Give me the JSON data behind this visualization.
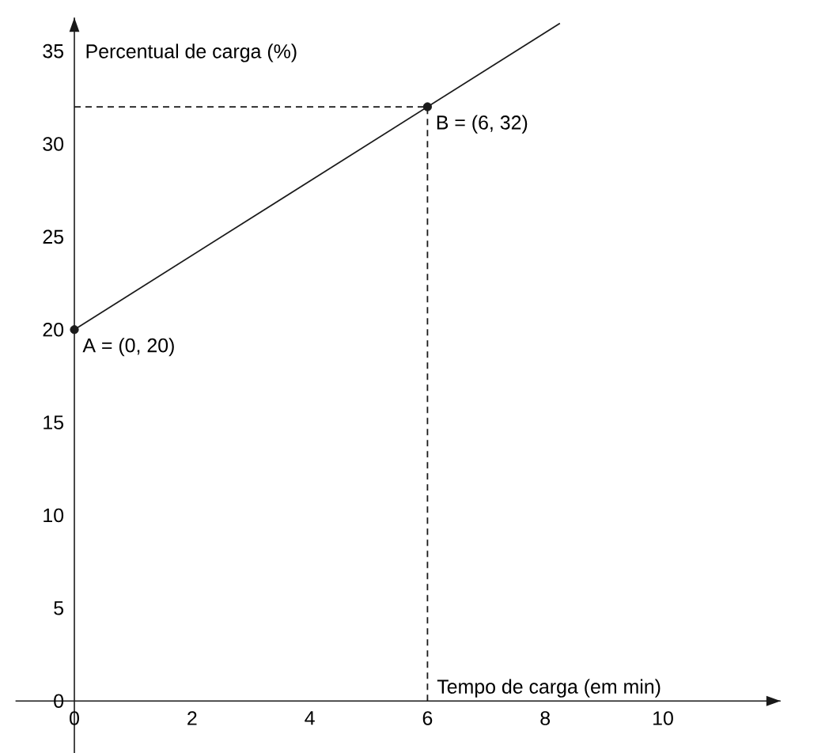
{
  "chart_data": {
    "type": "line",
    "xlabel": "Tempo de carga (em min)",
    "ylabel": "Percentual de carga (%)",
    "xlim": [
      -1,
      12
    ],
    "ylim": [
      -2.8,
      36.8
    ],
    "xticks": [
      0,
      2,
      4,
      6,
      8,
      10
    ],
    "yticks": [
      0,
      5,
      10,
      15,
      20,
      25,
      30,
      35
    ],
    "grid": false,
    "series": [
      {
        "color": "#1a1a1a",
        "line_style": "solid",
        "x": [
          0,
          8.25
        ],
        "values": [
          20,
          36.5
        ]
      },
      {
        "color": "#1a1a1a",
        "line_style": "dashed",
        "x": [
          0,
          6
        ],
        "values": [
          32,
          32
        ]
      },
      {
        "color": "#1a1a1a",
        "line_style": "dashed",
        "x": [
          6,
          6
        ],
        "values": [
          0,
          32
        ]
      },
      {
        "type": "scatter",
        "color": "#1a1a1a",
        "marker": "circle",
        "x": [
          0,
          6
        ],
        "values": [
          20,
          32
        ]
      }
    ],
    "annotations": [
      {
        "text": "A = (0, 20)",
        "x": 0,
        "y": 20
      },
      {
        "text": "B = (6, 32)",
        "x": 6,
        "y": 32
      }
    ]
  }
}
